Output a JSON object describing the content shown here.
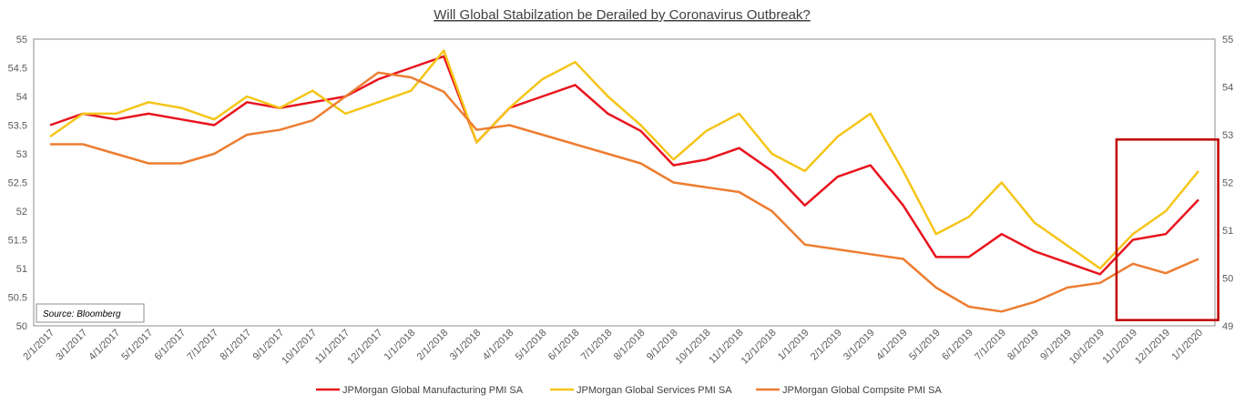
{
  "chart_data": {
    "type": "line",
    "title": "Will Global Stabilzation be Derailed by Coronavirus Outbreak?",
    "source_note": "Source: Bloomberg",
    "x": [
      "2/1/2017",
      "3/1/2017",
      "4/1/2017",
      "5/1/2017",
      "6/1/2017",
      "7/1/2017",
      "8/1/2017",
      "9/1/2017",
      "10/1/2017",
      "11/1/2017",
      "12/1/2017",
      "1/1/2018",
      "2/1/2018",
      "3/1/2018",
      "4/1/2018",
      "5/1/2018",
      "6/1/2018",
      "7/1/2018",
      "8/1/2018",
      "9/1/2018",
      "10/1/2018",
      "11/1/2018",
      "12/1/2018",
      "1/1/2019",
      "2/1/2019",
      "3/1/2019",
      "4/1/2019",
      "5/1/2019",
      "6/1/2019",
      "7/1/2019",
      "8/1/2019",
      "9/1/2019",
      "10/1/2019",
      "11/1/2019",
      "12/1/2019",
      "1/1/2020"
    ],
    "ylim_left": [
      50,
      55
    ],
    "yticks_left": [
      "50",
      "50.5",
      "51",
      "51.5",
      "52",
      "52.5",
      "53",
      "53.5",
      "54",
      "54.5",
      "55"
    ],
    "ylim_right": [
      49,
      55
    ],
    "yticks_right": [
      "49",
      "50",
      "51",
      "52",
      "53",
      "54",
      "55"
    ],
    "series": [
      {
        "name": "JPMorgan Global Manufacturing PMI SA",
        "axis": "left",
        "color": "#E8141E",
        "values": [
          53.5,
          53.7,
          53.6,
          53.7,
          53.6,
          53.5,
          53.9,
          53.8,
          53.9,
          54.0,
          54.3,
          54.5,
          54.7,
          53.2,
          53.8,
          54.0,
          54.2,
          53.7,
          53.4,
          52.8,
          52.9,
          53.1,
          52.7,
          52.1,
          52.6,
          52.8,
          52.1,
          51.2,
          51.2,
          51.6,
          51.3,
          51.1,
          50.9,
          51.5,
          51.6,
          52.2
        ]
      },
      {
        "name": "JPMorgan Global Services PMI SA",
        "axis": "left",
        "color": "#F5C518",
        "values": [
          53.3,
          53.7,
          53.7,
          53.9,
          53.8,
          53.6,
          54.0,
          53.8,
          54.1,
          53.7,
          53.9,
          54.1,
          54.8,
          53.2,
          53.8,
          54.3,
          54.6,
          54.0,
          53.5,
          52.9,
          53.4,
          53.7,
          53.0,
          52.7,
          53.3,
          53.7,
          52.7,
          51.6,
          51.9,
          52.5,
          51.8,
          51.4,
          51.0,
          51.6,
          52.0,
          52.7
        ]
      },
      {
        "name": "JPMorgan Global Compsite PMI SA",
        "axis": "right",
        "color": "#ED7D31",
        "values": [
          52.8,
          52.8,
          52.6,
          52.4,
          52.4,
          52.6,
          53.0,
          53.1,
          53.3,
          53.8,
          54.3,
          54.2,
          53.9,
          53.1,
          53.2,
          53.0,
          52.8,
          52.6,
          52.4,
          52.0,
          51.9,
          51.8,
          51.4,
          50.7,
          50.6,
          50.5,
          50.4,
          49.8,
          49.4,
          49.3,
          49.5,
          49.8,
          49.9,
          50.3,
          50.1,
          50.4
        ]
      }
    ],
    "highlight_range": [
      "11/1/2019",
      "1/1/2020"
    ],
    "legend_position": "bottom",
    "grid": false
  }
}
